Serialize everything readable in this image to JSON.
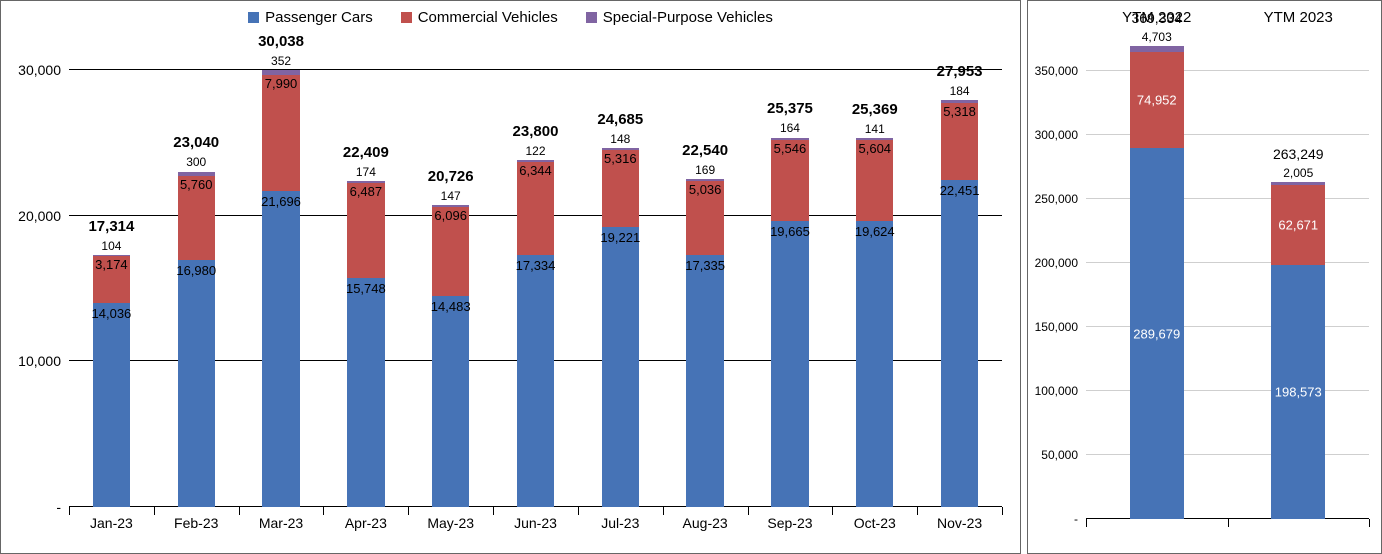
{
  "colors": {
    "passenger": "#4673b6",
    "commercial": "#c0504d",
    "special": "#8064a2",
    "grid": "#000000",
    "grid_light": "#cfcfcf",
    "text": "#000000",
    "bg": "#ffffff"
  },
  "legend": [
    {
      "label": "Passenger Cars",
      "color": "#4673b6"
    },
    {
      "label": "Commercial Vehicles",
      "color": "#c0504d"
    },
    {
      "label": "Special-Purpose Vehicles",
      "color": "#8064a2"
    }
  ],
  "left_chart": {
    "type": "stacked-bar",
    "ymin": 0,
    "ymax": 32000,
    "yticks": [
      {
        "v": 0,
        "label": "-"
      },
      {
        "v": 10000,
        "label": "10,000"
      },
      {
        "v": 20000,
        "label": "20,000"
      },
      {
        "v": 30000,
        "label": "30,000"
      }
    ],
    "bar_width_pct": 44,
    "categories": [
      {
        "x": "Jan-23",
        "total": 17314,
        "passenger": 14036,
        "commercial": 3174,
        "special": 104,
        "lbl_total": "17,314",
        "lbl_p": "14,036",
        "lbl_c": "3,174",
        "lbl_s": "104"
      },
      {
        "x": "Feb-23",
        "total": 23040,
        "passenger": 16980,
        "commercial": 5760,
        "special": 300,
        "lbl_total": "23,040",
        "lbl_p": "16,980",
        "lbl_c": "5,760",
        "lbl_s": "300"
      },
      {
        "x": "Mar-23",
        "total": 30038,
        "passenger": 21696,
        "commercial": 7990,
        "special": 352,
        "lbl_total": "30,038",
        "lbl_p": "21,696",
        "lbl_c": "7,990",
        "lbl_s": "352"
      },
      {
        "x": "Apr-23",
        "total": 22409,
        "passenger": 15748,
        "commercial": 6487,
        "special": 174,
        "lbl_total": "22,409",
        "lbl_p": "15,748",
        "lbl_c": "6,487",
        "lbl_s": "174"
      },
      {
        "x": "May-23",
        "total": 20726,
        "passenger": 14483,
        "commercial": 6096,
        "special": 147,
        "lbl_total": "20,726",
        "lbl_p": "14,483",
        "lbl_c": "6,096",
        "lbl_s": "147"
      },
      {
        "x": "Jun-23",
        "total": 23800,
        "passenger": 17334,
        "commercial": 6344,
        "special": 122,
        "lbl_total": "23,800",
        "lbl_p": "17,334",
        "lbl_c": "6,344",
        "lbl_s": "122"
      },
      {
        "x": "Jul-23",
        "total": 24685,
        "passenger": 19221,
        "commercial": 5316,
        "special": 148,
        "lbl_total": "24,685",
        "lbl_p": "19,221",
        "lbl_c": "5,316",
        "lbl_s": "148"
      },
      {
        "x": "Aug-23",
        "total": 22540,
        "passenger": 17335,
        "commercial": 5036,
        "special": 169,
        "lbl_total": "22,540",
        "lbl_p": "17,335",
        "lbl_c": "5,036",
        "lbl_s": "169"
      },
      {
        "x": "Sep-23",
        "total": 25375,
        "passenger": 19665,
        "commercial": 5546,
        "special": 164,
        "lbl_total": "25,375",
        "lbl_p": "19,665",
        "lbl_c": "5,546",
        "lbl_s": "164"
      },
      {
        "x": "Oct-23",
        "total": 25369,
        "passenger": 19624,
        "commercial": 5604,
        "special": 141,
        "lbl_total": "25,369",
        "lbl_p": "19,624",
        "lbl_c": "5,604",
        "lbl_s": "141"
      },
      {
        "x": "Nov-23",
        "total": 27953,
        "passenger": 22451,
        "commercial": 5318,
        "special": 184,
        "lbl_total": "27,953",
        "lbl_p": "22,451",
        "lbl_c": "5,318",
        "lbl_s": "184"
      }
    ]
  },
  "right_chart": {
    "type": "stacked-bar",
    "ymin": 0,
    "ymax": 400000,
    "yticks": [
      {
        "v": 0,
        "label": "-"
      },
      {
        "v": 50000,
        "label": "50,000"
      },
      {
        "v": 100000,
        "label": "100,000"
      },
      {
        "v": 150000,
        "label": "150,000"
      },
      {
        "v": 200000,
        "label": "200,000"
      },
      {
        "v": 250000,
        "label": "250,000"
      },
      {
        "v": 300000,
        "label": "300,000"
      },
      {
        "v": 350000,
        "label": "350,000"
      }
    ],
    "bar_width_pct": 38,
    "categories": [
      {
        "x": "YTM 2022",
        "total": 369334,
        "passenger": 289679,
        "commercial": 74952,
        "special": 4703,
        "lbl_total": "369,334",
        "lbl_p": "289,679",
        "lbl_c": "74,952",
        "lbl_s": "4,703"
      },
      {
        "x": "YTM 2023",
        "total": 263249,
        "passenger": 198573,
        "commercial": 62671,
        "special": 2005,
        "lbl_total": "263,249",
        "lbl_p": "198,573",
        "lbl_c": "62,671",
        "lbl_s": "2,005"
      }
    ]
  }
}
